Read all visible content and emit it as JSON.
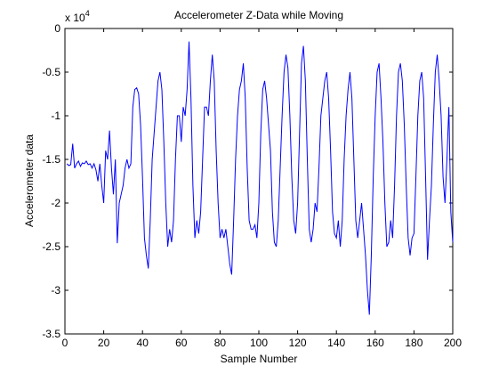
{
  "chart_data": {
    "type": "line",
    "title": "Accelerometer Z-Data while Moving",
    "xlabel": "Sample Number",
    "ylabel": "Accelerometer data",
    "y_multiplier": {
      "base": "x 10",
      "exponent": "4"
    },
    "color": "#0000ff",
    "xlim": [
      0,
      200
    ],
    "xticks": [
      0,
      20,
      40,
      60,
      80,
      100,
      120,
      140,
      160,
      180,
      200
    ],
    "ylim": [
      -3.5,
      0
    ],
    "yticks": [
      -3.5,
      -3,
      -2.5,
      -2,
      -1.5,
      -1,
      -0.5,
      0
    ],
    "x": [
      1,
      2,
      3,
      4,
      5,
      6,
      7,
      8,
      9,
      10,
      11,
      12,
      13,
      14,
      15,
      16,
      17,
      18,
      19,
      20,
      21,
      22,
      23,
      24,
      25,
      26,
      27,
      28,
      29,
      30,
      31,
      32,
      33,
      34,
      35,
      36,
      37,
      38,
      39,
      40,
      41,
      42,
      43,
      44,
      45,
      46,
      47,
      48,
      49,
      50,
      51,
      52,
      53,
      54,
      55,
      56,
      57,
      58,
      59,
      60,
      61,
      62,
      63,
      64,
      65,
      66,
      67,
      68,
      69,
      70,
      71,
      72,
      73,
      74,
      75,
      76,
      77,
      78,
      79,
      80,
      81,
      82,
      83,
      84,
      85,
      86,
      87,
      88,
      89,
      90,
      91,
      92,
      93,
      94,
      95,
      96,
      97,
      98,
      99,
      100,
      101,
      102,
      103,
      104,
      105,
      106,
      107,
      108,
      109,
      110,
      111,
      112,
      113,
      114,
      115,
      116,
      117,
      118,
      119,
      120,
      121,
      122,
      123,
      124,
      125,
      126,
      127,
      128,
      129,
      130,
      131,
      132,
      133,
      134,
      135,
      136,
      137,
      138,
      139,
      140,
      141,
      142,
      143,
      144,
      145,
      146,
      147,
      148,
      149,
      150,
      151,
      152,
      153,
      154,
      155,
      156,
      157,
      158,
      159,
      160,
      161,
      162,
      163,
      164,
      165,
      166,
      167,
      168,
      169,
      170,
      171,
      172,
      173,
      174,
      175,
      176,
      177,
      178,
      179,
      180,
      181,
      182,
      183,
      184,
      185,
      186,
      187,
      188,
      189,
      190,
      191,
      192,
      193,
      194,
      195,
      196,
      197,
      198,
      199,
      200
    ],
    "values": [
      -1.55,
      -1.57,
      -1.56,
      -1.32,
      -1.6,
      -1.55,
      -1.52,
      -1.58,
      -1.54,
      -1.55,
      -1.52,
      -1.56,
      -1.55,
      -1.6,
      -1.55,
      -1.62,
      -1.75,
      -1.55,
      -1.8,
      -2.0,
      -1.4,
      -1.5,
      -1.17,
      -1.6,
      -1.9,
      -1.5,
      -2.46,
      -2.0,
      -1.9,
      -1.8,
      -1.6,
      -1.5,
      -1.6,
      -1.55,
      -0.9,
      -0.7,
      -0.68,
      -0.75,
      -1.1,
      -1.7,
      -2.4,
      -2.6,
      -2.75,
      -2.2,
      -1.5,
      -1.2,
      -0.9,
      -0.6,
      -0.5,
      -0.7,
      -1.3,
      -2.0,
      -2.5,
      -2.3,
      -2.45,
      -2.2,
      -1.5,
      -1.0,
      -1.0,
      -1.3,
      -0.9,
      -1.0,
      -0.7,
      -0.15,
      -0.8,
      -1.8,
      -2.4,
      -2.2,
      -2.35,
      -2.1,
      -1.5,
      -0.9,
      -0.9,
      -1.0,
      -0.6,
      -0.3,
      -0.6,
      -1.4,
      -2.0,
      -2.4,
      -2.3,
      -2.4,
      -2.3,
      -2.5,
      -2.7,
      -2.82,
      -2.2,
      -1.5,
      -1.0,
      -0.7,
      -0.6,
      -0.4,
      -0.8,
      -1.6,
      -2.2,
      -2.3,
      -2.3,
      -2.25,
      -2.4,
      -2.0,
      -1.2,
      -0.7,
      -0.6,
      -0.8,
      -1.1,
      -1.4,
      -2.1,
      -2.45,
      -2.5,
      -2.2,
      -1.6,
      -1.0,
      -0.5,
      -0.3,
      -0.45,
      -1.0,
      -1.7,
      -2.2,
      -2.35,
      -2.0,
      -1.2,
      -0.4,
      -0.2,
      -0.6,
      -1.5,
      -2.3,
      -2.45,
      -2.3,
      -2.0,
      -2.1,
      -1.6,
      -1.0,
      -0.8,
      -0.6,
      -0.5,
      -0.8,
      -1.4,
      -2.1,
      -2.35,
      -2.4,
      -2.2,
      -2.5,
      -2.2,
      -1.5,
      -1.0,
      -0.7,
      -0.5,
      -0.8,
      -1.5,
      -2.2,
      -2.4,
      -2.2,
      -2.0,
      -2.3,
      -2.6,
      -3.0,
      -3.28,
      -2.6,
      -1.7,
      -1.0,
      -0.5,
      -0.4,
      -0.8,
      -1.3,
      -2.0,
      -2.5,
      -2.45,
      -2.2,
      -2.4,
      -1.8,
      -1.0,
      -0.5,
      -0.4,
      -0.6,
      -1.1,
      -1.8,
      -2.4,
      -2.6,
      -2.4,
      -2.35,
      -1.7,
      -1.0,
      -0.6,
      -0.5,
      -0.8,
      -1.7,
      -2.65,
      -2.2,
      -1.8,
      -1.1,
      -0.5,
      -0.3,
      -0.6,
      -1.0,
      -1.7,
      -2.0,
      -1.5,
      -0.9,
      -2.1,
      -2.45
    ]
  }
}
